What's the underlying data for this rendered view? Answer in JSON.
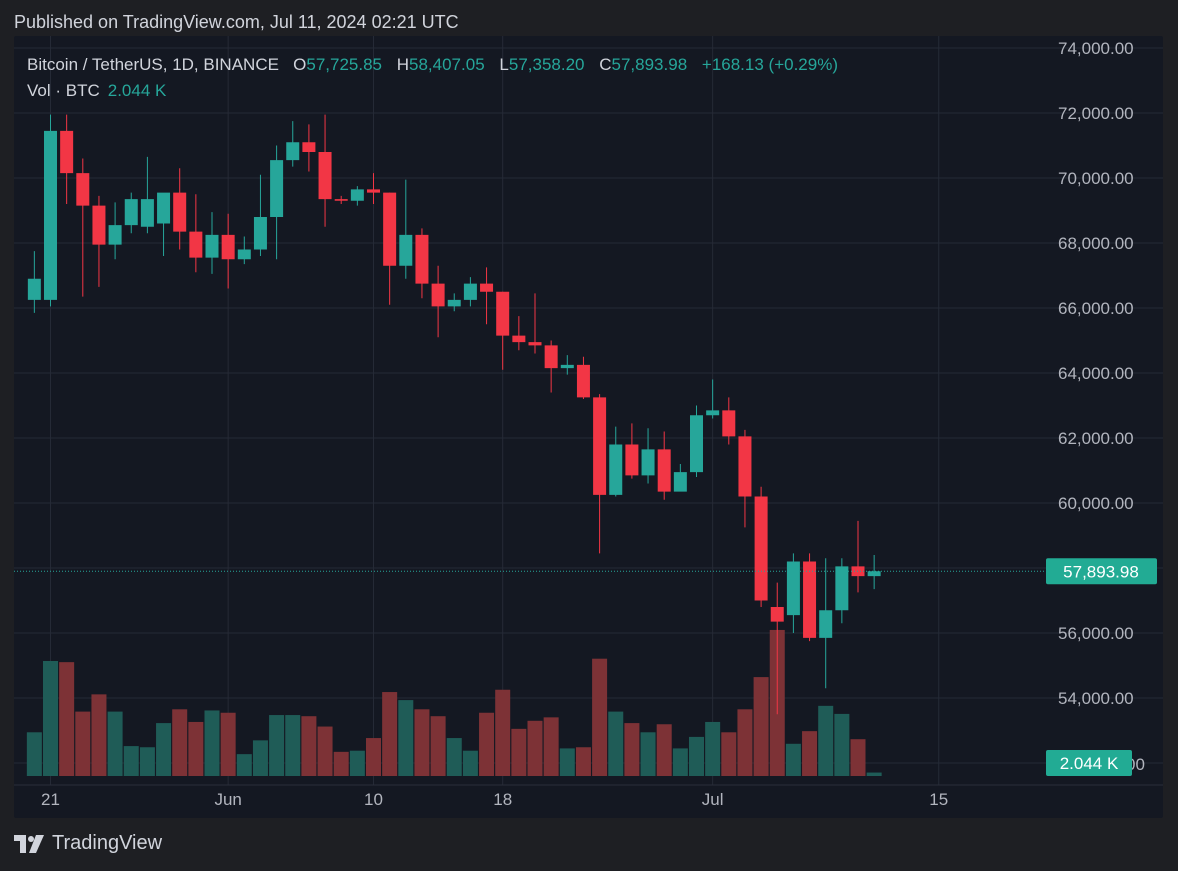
{
  "header": {
    "published": "Published on TradingView.com, Jul 11, 2024 02:21 UTC"
  },
  "legend": {
    "symbol": "Bitcoin / TetherUS, 1D, BINANCE",
    "open_label": "O",
    "open": "57,725.85",
    "high_label": "H",
    "high": "58,407.05",
    "low_label": "L",
    "low": "57,358.20",
    "close_label": "C",
    "close": "57,893.98",
    "change": "+168.13 (+0.29%)"
  },
  "volume_legend": {
    "label": "Vol · BTC",
    "value": "2.044 K"
  },
  "footer": {
    "brand": "TradingView"
  },
  "colors": {
    "up": "#26a69a",
    "down": "#f23645",
    "up_volume": "#1f5c57",
    "down_volume": "#7d3236",
    "background": "#141822",
    "price_tag": "#22ab94"
  },
  "chart_data": {
    "type": "candlestick",
    "symbol": "BTC/USDT",
    "interval": "1D",
    "x_tick_labels": [
      {
        "date": "2024-05-21",
        "label": "21"
      },
      {
        "date": "2024-06-01",
        "label": "Jun"
      },
      {
        "date": "2024-06-10",
        "label": "10"
      },
      {
        "date": "2024-06-18",
        "label": "18"
      },
      {
        "date": "2024-07-01",
        "label": "Jul"
      },
      {
        "date": "2024-07-15",
        "label": "15"
      }
    ],
    "y_tick_labels": [
      "74,000.00",
      "72,000.00",
      "70,000.00",
      "68,000.00",
      "66,000.00",
      "64,000.00",
      "62,000.00",
      "60,000.00",
      "56,000.00",
      "54,000.00"
    ],
    "ylim": [
      51700,
      74700
    ],
    "last_price_label": "57,893.98",
    "last_volume_label": "2.044 K",
    "volume_axis_partial_label": "00",
    "candles": [
      {
        "date": "2024-05-20",
        "o": 66250,
        "h": 67750,
        "l": 65850,
        "c": 66900
      },
      {
        "date": "2024-05-21",
        "o": 66250,
        "h": 71950,
        "l": 66050,
        "c": 71450
      },
      {
        "date": "2024-05-22",
        "o": 71450,
        "h": 71950,
        "l": 69200,
        "c": 70150
      },
      {
        "date": "2024-05-23",
        "o": 70150,
        "h": 70600,
        "l": 66350,
        "c": 69150
      },
      {
        "date": "2024-05-24",
        "o": 69150,
        "h": 69450,
        "l": 66650,
        "c": 67950
      },
      {
        "date": "2024-05-25",
        "o": 67950,
        "h": 69250,
        "l": 67500,
        "c": 68550
      },
      {
        "date": "2024-05-26",
        "o": 68550,
        "h": 69550,
        "l": 68300,
        "c": 69350
      },
      {
        "date": "2024-05-27",
        "o": 68500,
        "h": 70650,
        "l": 68300,
        "c": 69350
      },
      {
        "date": "2024-05-28",
        "o": 68600,
        "h": 69500,
        "l": 67600,
        "c": 69550
      },
      {
        "date": "2024-05-29",
        "o": 69550,
        "h": 70300,
        "l": 67800,
        "c": 68350
      },
      {
        "date": "2024-05-30",
        "o": 68350,
        "h": 69500,
        "l": 67100,
        "c": 67550
      },
      {
        "date": "2024-05-31",
        "o": 67550,
        "h": 68950,
        "l": 67050,
        "c": 68250
      },
      {
        "date": "2024-06-01",
        "o": 68250,
        "h": 68900,
        "l": 66600,
        "c": 67500
      },
      {
        "date": "2024-06-02",
        "o": 67500,
        "h": 68200,
        "l": 67350,
        "c": 67800
      },
      {
        "date": "2024-06-03",
        "o": 67800,
        "h": 70100,
        "l": 67600,
        "c": 68800
      },
      {
        "date": "2024-06-04",
        "o": 68800,
        "h": 71000,
        "l": 67500,
        "c": 70550
      },
      {
        "date": "2024-06-05",
        "o": 70550,
        "h": 71750,
        "l": 70350,
        "c": 71100
      },
      {
        "date": "2024-06-06",
        "o": 71100,
        "h": 71650,
        "l": 70200,
        "c": 70800
      },
      {
        "date": "2024-06-07",
        "o": 70800,
        "h": 71950,
        "l": 68500,
        "c": 69350
      },
      {
        "date": "2024-06-08",
        "o": 69350,
        "h": 69450,
        "l": 69200,
        "c": 69300
      },
      {
        "date": "2024-06-09",
        "o": 69300,
        "h": 69750,
        "l": 69150,
        "c": 69650
      },
      {
        "date": "2024-06-10",
        "o": 69650,
        "h": 70150,
        "l": 69200,
        "c": 69550
      },
      {
        "date": "2024-06-11",
        "o": 69550,
        "h": 69550,
        "l": 66100,
        "c": 67300
      },
      {
        "date": "2024-06-12",
        "o": 67300,
        "h": 69950,
        "l": 66900,
        "c": 68250
      },
      {
        "date": "2024-06-13",
        "o": 68250,
        "h": 68450,
        "l": 66300,
        "c": 66750
      },
      {
        "date": "2024-06-14",
        "o": 66750,
        "h": 67300,
        "l": 65100,
        "c": 66050
      },
      {
        "date": "2024-06-15",
        "o": 66050,
        "h": 66450,
        "l": 65900,
        "c": 66250
      },
      {
        "date": "2024-06-16",
        "o": 66250,
        "h": 66950,
        "l": 66050,
        "c": 66750
      },
      {
        "date": "2024-06-17",
        "o": 66750,
        "h": 67250,
        "l": 65500,
        "c": 66500
      },
      {
        "date": "2024-06-18",
        "o": 66500,
        "h": 66500,
        "l": 64100,
        "c": 65150
      },
      {
        "date": "2024-06-19",
        "o": 65150,
        "h": 65750,
        "l": 64700,
        "c": 64950
      },
      {
        "date": "2024-06-20",
        "o": 64950,
        "h": 66450,
        "l": 64600,
        "c": 64850
      },
      {
        "date": "2024-06-21",
        "o": 64850,
        "h": 65000,
        "l": 63400,
        "c": 64150
      },
      {
        "date": "2024-06-22",
        "o": 64150,
        "h": 64550,
        "l": 63950,
        "c": 64250
      },
      {
        "date": "2024-06-23",
        "o": 64250,
        "h": 64500,
        "l": 63200,
        "c": 63250
      },
      {
        "date": "2024-06-24",
        "o": 63250,
        "h": 63350,
        "l": 58450,
        "c": 60250
      },
      {
        "date": "2024-06-25",
        "o": 60250,
        "h": 62350,
        "l": 60200,
        "c": 61800
      },
      {
        "date": "2024-06-26",
        "o": 61800,
        "h": 62450,
        "l": 60750,
        "c": 60850
      },
      {
        "date": "2024-06-27",
        "o": 60850,
        "h": 62300,
        "l": 60600,
        "c": 61650
      },
      {
        "date": "2024-06-28",
        "o": 61650,
        "h": 62200,
        "l": 60100,
        "c": 60350
      },
      {
        "date": "2024-06-29",
        "o": 60350,
        "h": 61200,
        "l": 60400,
        "c": 60950
      },
      {
        "date": "2024-06-30",
        "o": 60950,
        "h": 63000,
        "l": 60800,
        "c": 62700
      },
      {
        "date": "2024-07-01",
        "o": 62700,
        "h": 63800,
        "l": 62600,
        "c": 62850
      },
      {
        "date": "2024-07-02",
        "o": 62850,
        "h": 63250,
        "l": 61800,
        "c": 62050
      },
      {
        "date": "2024-07-03",
        "o": 62050,
        "h": 62250,
        "l": 59250,
        "c": 60200
      },
      {
        "date": "2024-07-04",
        "o": 60200,
        "h": 60500,
        "l": 56800,
        "c": 57000
      },
      {
        "date": "2024-07-05",
        "o": 56800,
        "h": 57550,
        "l": 53500,
        "c": 56350
      },
      {
        "date": "2024-07-06",
        "o": 56550,
        "h": 58450,
        "l": 56000,
        "c": 58200
      },
      {
        "date": "2024-07-07",
        "o": 58200,
        "h": 58450,
        "l": 55750,
        "c": 55850
      },
      {
        "date": "2024-07-08",
        "o": 55850,
        "h": 58300,
        "l": 54300,
        "c": 56700
      },
      {
        "date": "2024-07-09",
        "o": 56700,
        "h": 58300,
        "l": 56300,
        "c": 58050
      },
      {
        "date": "2024-07-10",
        "o": 58050,
        "h": 59450,
        "l": 57250,
        "c": 57750
      },
      {
        "date": "2024-07-11",
        "o": 57750,
        "h": 58400,
        "l": 57350,
        "c": 57900
      }
    ],
    "volume_relative": [
      0.38,
      1.0,
      0.99,
      0.56,
      0.71,
      0.56,
      0.26,
      0.25,
      0.46,
      0.58,
      0.47,
      0.57,
      0.55,
      0.19,
      0.31,
      0.53,
      0.53,
      0.52,
      0.43,
      0.21,
      0.22,
      0.33,
      0.73,
      0.66,
      0.58,
      0.52,
      0.33,
      0.22,
      0.55,
      0.75,
      0.41,
      0.48,
      0.51,
      0.24,
      0.25,
      1.02,
      0.56,
      0.46,
      0.38,
      0.45,
      0.24,
      0.34,
      0.47,
      0.38,
      0.58,
      0.86,
      1.27,
      0.28,
      0.39,
      0.61,
      0.54,
      0.32,
      0.03
    ]
  }
}
